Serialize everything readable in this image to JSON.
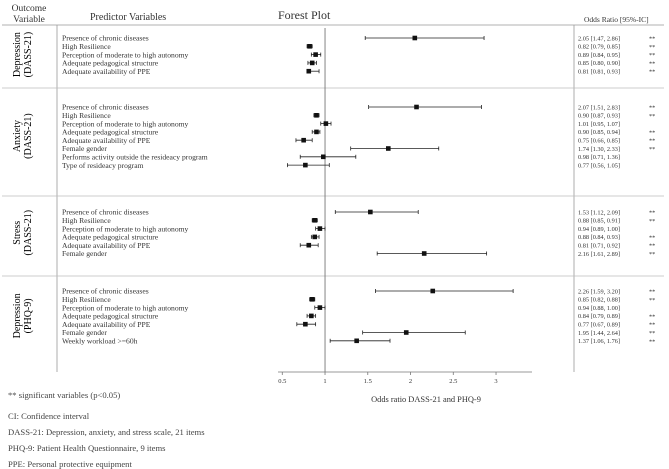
{
  "headers": {
    "outcome": "Outcome Variable",
    "predictor": "Predictor Variables",
    "title": "Forest Plot",
    "or_col": "Odds Ratio [95%-IC]"
  },
  "chart_data": {
    "type": "forest",
    "title": "Forest Plot",
    "xlabel": "Odds ratio DASS-21 and PHQ-9",
    "xlim": [
      0.45,
      3.3
    ],
    "xticks": [
      "0.5",
      "1",
      "1.5",
      "2",
      "2.5",
      "3"
    ],
    "reference_line": 1,
    "groups": [
      {
        "label": "Depression (DASS-21)",
        "label_lines": [
          "Depression",
          "(DASS-21)"
        ],
        "rows": [
          {
            "name": "Presence of chronic diseases",
            "or": 2.05,
            "lo": 1.47,
            "hi": 2.86,
            "text": "2.05 [1.47, 2.86]",
            "sig": "**"
          },
          {
            "name": "High Resilience",
            "or": 0.82,
            "lo": 0.79,
            "hi": 0.85,
            "text": "0.82 [0.79, 0.85]",
            "sig": "**"
          },
          {
            "name": "Perception of moderate to high autonomy",
            "or": 0.89,
            "lo": 0.84,
            "hi": 0.95,
            "text": "0.89 [0.84, 0.95]",
            "sig": "**"
          },
          {
            "name": "Adequate pedagogical structure",
            "or": 0.85,
            "lo": 0.8,
            "hi": 0.9,
            "text": "0.85 [0.80, 0.90]",
            "sig": "**"
          },
          {
            "name": "Adequate availability of PPE",
            "or": 0.81,
            "lo": 0.81,
            "hi": 0.93,
            "text": "0.81 [0.81, 0.93]",
            "sig": "**"
          }
        ]
      },
      {
        "label": "Anxiety (DASS-21)",
        "label_lines": [
          "Anxiety",
          "(DASS-21)"
        ],
        "rows": [
          {
            "name": "Presence of chronic diseases",
            "or": 2.07,
            "lo": 1.51,
            "hi": 2.83,
            "text": "2.07 [1.51, 2.83]",
            "sig": "**"
          },
          {
            "name": "High Resilience",
            "or": 0.9,
            "lo": 0.87,
            "hi": 0.93,
            "text": "0.90 [0.87, 0.93]",
            "sig": "**"
          },
          {
            "name": "Perception of moderate to high autonomy",
            "or": 1.01,
            "lo": 0.95,
            "hi": 1.07,
            "text": "1.01 [0.95, 1.07]",
            "sig": ""
          },
          {
            "name": "Adequate pedagogical structure",
            "or": 0.9,
            "lo": 0.85,
            "hi": 0.94,
            "text": "0.90 [0.85, 0.94]",
            "sig": "**"
          },
          {
            "name": "Adequate availability of PPE",
            "or": 0.75,
            "lo": 0.66,
            "hi": 0.85,
            "text": "0.75 [0.66, 0.85]",
            "sig": "**"
          },
          {
            "name": "Female gender",
            "or": 1.74,
            "lo": 1.3,
            "hi": 2.33,
            "text": "1.74 [1.30, 2.33]",
            "sig": "**"
          },
          {
            "name": "Performs activity outside the resideacy program",
            "or": 0.98,
            "lo": 0.71,
            "hi": 1.36,
            "text": "0.98 [0.71, 1.36]",
            "sig": ""
          },
          {
            "name": "Type of resideacy program",
            "or": 0.77,
            "lo": 0.56,
            "hi": 1.05,
            "text": "0.77 [0.56, 1.05]",
            "sig": ""
          }
        ]
      },
      {
        "label": "Stress (DASS-21)",
        "label_lines": [
          "Stress",
          "(DASS-21)"
        ],
        "rows": [
          {
            "name": "Presence of chronic diseases",
            "or": 1.53,
            "lo": 1.12,
            "hi": 2.09,
            "text": "1.53 [1.12, 2.09]",
            "sig": "**"
          },
          {
            "name": "High Resilience",
            "or": 0.88,
            "lo": 0.85,
            "hi": 0.91,
            "text": "0.88 [0.85, 0.91]",
            "sig": "**"
          },
          {
            "name": "Perception of moderate to high autonomy",
            "or": 0.94,
            "lo": 0.89,
            "hi": 1.0,
            "text": "0.94 [0.89, 1.00]",
            "sig": ""
          },
          {
            "name": "Adequate pedagogical structure",
            "or": 0.88,
            "lo": 0.84,
            "hi": 0.93,
            "text": "0.88 [0.84, 0.93]",
            "sig": "**"
          },
          {
            "name": "Adequate availability of PPE",
            "or": 0.81,
            "lo": 0.71,
            "hi": 0.92,
            "text": "0.81 [0.71, 0.92]",
            "sig": "**"
          },
          {
            "name": "Female gender",
            "or": 2.16,
            "lo": 1.61,
            "hi": 2.89,
            "text": "2.16 [1.61, 2.89]",
            "sig": "**"
          }
        ]
      },
      {
        "label": "Depression (PHQ-9)",
        "label_lines": [
          "Depression",
          "(PHQ-9)"
        ],
        "rows": [
          {
            "name": "Presence of chronic diseases",
            "or": 2.26,
            "lo": 1.59,
            "hi": 3.2,
            "text": "2.26 [1.59, 3.20]",
            "sig": "**"
          },
          {
            "name": "High Resilience",
            "or": 0.85,
            "lo": 0.82,
            "hi": 0.88,
            "text": "0.85 [0.82, 0.88]",
            "sig": "**"
          },
          {
            "name": "Perception of moderate to high autonomy",
            "or": 0.94,
            "lo": 0.88,
            "hi": 1.0,
            "text": "0.94 [0.88, 1.00]",
            "sig": ""
          },
          {
            "name": "Adequate pedagogical structure",
            "or": 0.84,
            "lo": 0.79,
            "hi": 0.89,
            "text": "0.84 [0.79, 0.89]",
            "sig": "**"
          },
          {
            "name": "Adequate availability of PPE",
            "or": 0.77,
            "lo": 0.67,
            "hi": 0.89,
            "text": "0.77 [0.67, 0.89]",
            "sig": "**"
          },
          {
            "name": "Female gender",
            "or": 1.95,
            "lo": 1.44,
            "hi": 2.64,
            "text": "1.95 [1.44, 2.64]",
            "sig": "**"
          },
          {
            "name": "Weekly workload >=60h",
            "or": 1.37,
            "lo": 1.06,
            "hi": 1.76,
            "text": "1.37 [1.06, 1.76]",
            "sig": "**"
          }
        ]
      }
    ]
  },
  "significance_note": "** significant variables (p<0.05)",
  "footnotes": [
    "CI: Confidence interval",
    "DASS-21: Depression, anxiety, and stress scale, 21 items",
    "PHQ-9: Patient Health Questionnaire, 9 items",
    "PPE: Personal protective equipment"
  ]
}
